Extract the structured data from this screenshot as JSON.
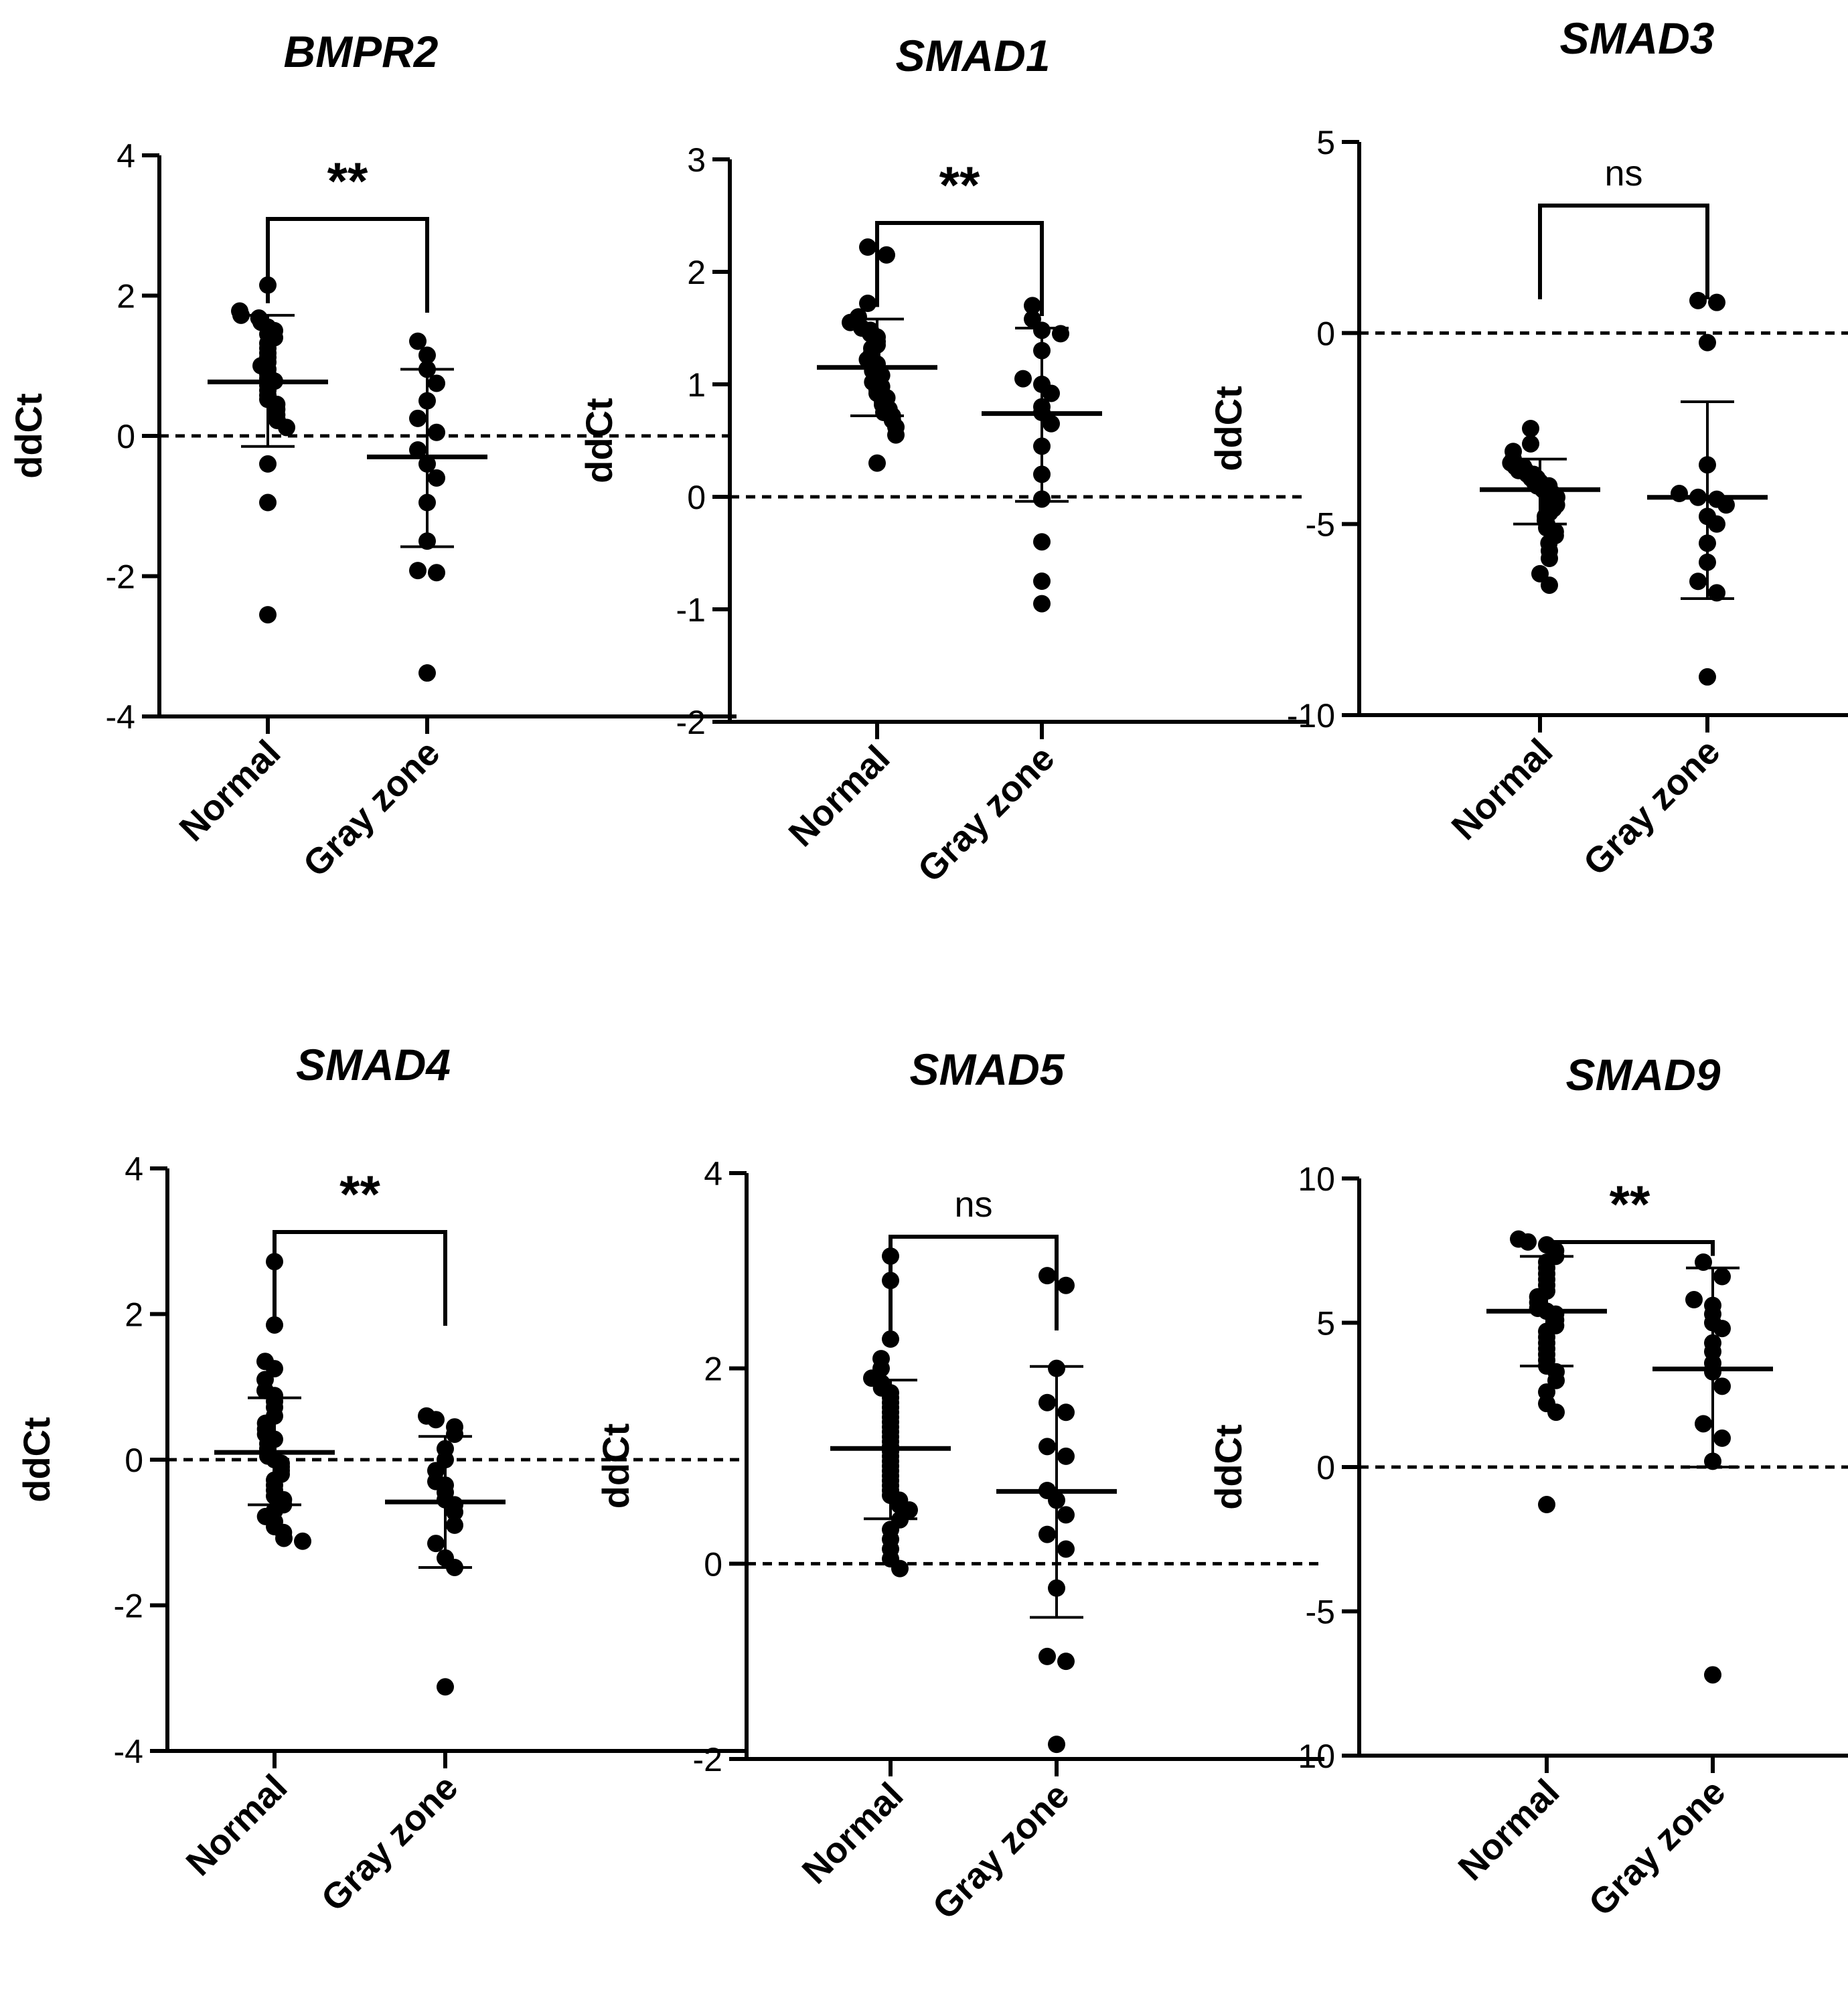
{
  "colors": {
    "ink": "#000000",
    "background": "#ffffff"
  },
  "chart_data": [
    {
      "type": "scatter",
      "title": "BMPR2",
      "ylabel": "ddCt",
      "categories": [
        "Normal",
        "Gray zone"
      ],
      "yticks": [
        "4",
        "2",
        "0",
        "-2",
        "-4"
      ],
      "tick_values": [
        4,
        2,
        0,
        -2,
        -4
      ],
      "ylim": [
        -4,
        4
      ],
      "reference_line": 0,
      "significance": "**",
      "series": [
        {
          "name": "Normal",
          "mean": 0.77,
          "sd_low": -0.15,
          "sd_high": 1.72,
          "values": [
            2.15,
            1.78,
            1.72,
            1.68,
            1.62,
            1.55,
            1.5,
            1.45,
            1.4,
            1.32,
            1.25,
            1.18,
            1.12,
            1.05,
            1.0,
            0.95,
            0.88,
            0.82,
            0.78,
            0.72,
            0.65,
            0.58,
            0.52,
            0.45,
            0.38,
            0.3,
            0.22,
            0.12,
            -0.4,
            -0.95,
            -2.55
          ]
        },
        {
          "name": "Gray zone",
          "mean": -0.3,
          "sd_low": -1.58,
          "sd_high": 0.95,
          "values": [
            1.35,
            1.15,
            0.95,
            0.75,
            0.5,
            0.25,
            0.05,
            -0.2,
            -0.4,
            -0.6,
            -0.95,
            -1.5,
            -1.92,
            -1.95,
            -3.38
          ]
        }
      ]
    },
    {
      "type": "scatter",
      "title": "SMAD1",
      "ylabel": "ddCt",
      "categories": [
        "Normal",
        "Gray zone"
      ],
      "yticks": [
        "3",
        "2",
        "1",
        "0",
        "-1",
        "-2"
      ],
      "tick_values": [
        3,
        2,
        1,
        0,
        -1,
        -2
      ],
      "ylim": [
        -2,
        3
      ],
      "reference_line": 0,
      "significance": "**",
      "series": [
        {
          "name": "Normal",
          "mean": 1.15,
          "sd_low": 0.72,
          "sd_high": 1.58,
          "values": [
            2.22,
            2.15,
            1.72,
            1.6,
            1.55,
            1.5,
            1.48,
            1.45,
            1.42,
            1.38,
            1.35,
            1.32,
            1.28,
            1.25,
            1.22,
            1.2,
            1.18,
            1.15,
            1.12,
            1.1,
            1.08,
            1.05,
            1.02,
            1.0,
            0.98,
            0.95,
            0.92,
            0.9,
            0.88,
            0.85,
            0.82,
            0.78,
            0.75,
            0.72,
            0.68,
            0.62,
            0.55,
            0.3
          ]
        },
        {
          "name": "Gray zone",
          "mean": 0.74,
          "sd_low": -0.04,
          "sd_high": 1.5,
          "values": [
            1.7,
            1.58,
            1.48,
            1.45,
            1.3,
            1.05,
            1.0,
            0.92,
            0.8,
            0.75,
            0.65,
            0.45,
            0.2,
            -0.02,
            -0.4,
            -0.75,
            -0.95
          ]
        }
      ]
    },
    {
      "type": "scatter",
      "title": "SMAD3",
      "ylabel": "ddCt",
      "categories": [
        "Normal",
        "Gray zone"
      ],
      "yticks": [
        "5",
        "0",
        "-5",
        "-10"
      ],
      "tick_values": [
        5,
        0,
        -5,
        -10
      ],
      "ylim": [
        -10,
        5
      ],
      "reference_line": 0,
      "significance": "ns",
      "series": [
        {
          "name": "Normal",
          "mean": -4.1,
          "sd_low": -5.0,
          "sd_high": -3.3,
          "values": [
            -2.5,
            -2.9,
            -3.1,
            -3.3,
            -3.4,
            -3.5,
            -3.5,
            -3.6,
            -3.6,
            -3.7,
            -3.7,
            -3.8,
            -3.8,
            -3.9,
            -3.9,
            -4.0,
            -4.0,
            -4.0,
            -4.1,
            -4.1,
            -4.2,
            -4.2,
            -4.3,
            -4.3,
            -4.4,
            -4.5,
            -4.5,
            -4.6,
            -4.7,
            -4.8,
            -4.9,
            -5.0,
            -5.1,
            -5.2,
            -5.3,
            -5.5,
            -5.7,
            -5.9,
            -6.3,
            -6.6
          ]
        },
        {
          "name": "Gray zone",
          "mean": -4.3,
          "sd_low": -6.95,
          "sd_high": -1.8,
          "values": [
            0.85,
            0.8,
            -0.25,
            -3.45,
            -4.2,
            -4.3,
            -4.35,
            -4.5,
            -4.8,
            -5.0,
            -5.5,
            -6.0,
            -6.5,
            -6.8,
            -9.0
          ]
        }
      ]
    },
    {
      "type": "scatter",
      "title": "SMAD4",
      "ylabel": "ddCt",
      "categories": [
        "Normal",
        "Gray zone"
      ],
      "yticks": [
        "4",
        "2",
        "0",
        "-2",
        "-4"
      ],
      "tick_values": [
        4,
        2,
        0,
        -2,
        -4
      ],
      "ylim": [
        -4,
        4
      ],
      "reference_line": 0,
      "significance": "**",
      "series": [
        {
          "name": "Normal",
          "mean": 0.1,
          "sd_low": -0.62,
          "sd_high": 0.85,
          "values": [
            2.72,
            1.85,
            1.35,
            1.25,
            1.1,
            0.95,
            0.88,
            0.8,
            0.72,
            0.6,
            0.5,
            0.42,
            0.35,
            0.28,
            0.22,
            0.15,
            0.1,
            0.05,
            0.0,
            -0.05,
            -0.1,
            -0.15,
            -0.2,
            -0.28,
            -0.35,
            -0.42,
            -0.5,
            -0.55,
            -0.62,
            -0.7,
            -0.78,
            -0.85,
            -0.92,
            -1.0,
            -1.08,
            -1.12
          ]
        },
        {
          "name": "Gray zone",
          "mean": -0.58,
          "sd_low": -1.48,
          "sd_high": 0.32,
          "values": [
            0.6,
            0.55,
            0.45,
            0.35,
            0.15,
            0.0,
            -0.15,
            -0.3,
            -0.35,
            -0.45,
            -0.55,
            -0.62,
            -0.72,
            -0.9,
            -1.15,
            -1.35,
            -1.48,
            -3.12
          ]
        }
      ]
    },
    {
      "type": "scatter",
      "title": "SMAD5",
      "ylabel": "ddCt",
      "categories": [
        "Normal",
        "Gray zone"
      ],
      "yticks": [
        "4",
        "2",
        "0",
        "-2"
      ],
      "tick_values": [
        4,
        2,
        0,
        -2
      ],
      "ylim": [
        -2,
        4
      ],
      "reference_line": 0,
      "significance": "ns",
      "series": [
        {
          "name": "Normal",
          "mean": 1.18,
          "sd_low": 0.46,
          "sd_high": 1.88,
          "values": [
            3.15,
            2.9,
            2.3,
            2.1,
            2.0,
            1.9,
            1.85,
            1.8,
            1.75,
            1.7,
            1.65,
            1.6,
            1.55,
            1.5,
            1.45,
            1.4,
            1.35,
            1.3,
            1.25,
            1.2,
            1.15,
            1.1,
            1.05,
            1.0,
            0.95,
            0.9,
            0.85,
            0.8,
            0.75,
            0.7,
            0.65,
            0.6,
            0.55,
            0.45,
            0.35,
            0.25,
            0.15,
            0.05,
            -0.05
          ]
        },
        {
          "name": "Gray zone",
          "mean": 0.74,
          "sd_low": -0.55,
          "sd_high": 2.02,
          "values": [
            2.95,
            2.85,
            2.0,
            1.65,
            1.55,
            1.2,
            1.1,
            0.75,
            0.65,
            0.5,
            0.3,
            0.15,
            -0.25,
            -0.95,
            -1.0,
            -1.85
          ]
        }
      ]
    },
    {
      "type": "scatter",
      "title": "SMAD9",
      "ylabel": "ddCt",
      "categories": [
        "Normal",
        "Gray zone"
      ],
      "yticks": [
        "10",
        "5",
        "0",
        "-5",
        "-10"
      ],
      "tick_values": [
        10,
        5,
        0,
        -5,
        -10
      ],
      "ylim": [
        -10,
        10
      ],
      "reference_line": 0,
      "significance": "**",
      "series": [
        {
          "name": "Normal",
          "mean": 5.4,
          "sd_low": 3.5,
          "sd_high": 7.3,
          "values": [
            7.9,
            7.8,
            7.7,
            7.5,
            7.3,
            7.1,
            6.9,
            6.7,
            6.5,
            6.3,
            6.1,
            5.9,
            5.7,
            5.5,
            5.4,
            5.3,
            5.1,
            4.9,
            4.7,
            4.5,
            4.3,
            4.1,
            3.9,
            3.7,
            3.5,
            3.3,
            3.0,
            2.6,
            2.2,
            1.9,
            -1.3
          ]
        },
        {
          "name": "Gray zone",
          "mean": 3.4,
          "sd_low": 0.0,
          "sd_high": 6.9,
          "values": [
            7.1,
            6.6,
            5.8,
            5.6,
            5.3,
            5.0,
            4.8,
            4.3,
            4.0,
            3.6,
            3.3,
            2.8,
            1.5,
            1.0,
            0.2,
            -7.2
          ]
        }
      ]
    }
  ]
}
